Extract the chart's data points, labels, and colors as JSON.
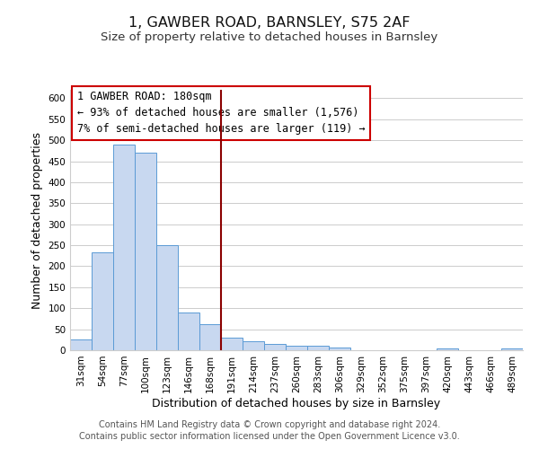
{
  "title": "1, GAWBER ROAD, BARNSLEY, S75 2AF",
  "subtitle": "Size of property relative to detached houses in Barnsley",
  "xlabel": "Distribution of detached houses by size in Barnsley",
  "ylabel": "Number of detached properties",
  "bar_color": "#c8d8f0",
  "bar_edge_color": "#5b9bd5",
  "categories": [
    "31sqm",
    "54sqm",
    "77sqm",
    "100sqm",
    "123sqm",
    "146sqm",
    "168sqm",
    "191sqm",
    "214sqm",
    "237sqm",
    "260sqm",
    "283sqm",
    "306sqm",
    "329sqm",
    "352sqm",
    "375sqm",
    "397sqm",
    "420sqm",
    "443sqm",
    "466sqm",
    "489sqm"
  ],
  "values": [
    25,
    232,
    490,
    470,
    250,
    90,
    62,
    30,
    22,
    14,
    10,
    10,
    7,
    0,
    0,
    0,
    0,
    5,
    0,
    0,
    4
  ],
  "ylim": [
    0,
    620
  ],
  "yticks": [
    0,
    50,
    100,
    150,
    200,
    250,
    300,
    350,
    400,
    450,
    500,
    550,
    600
  ],
  "vline_x": 6.5,
  "vline_color": "#8b0000",
  "annotation_title": "1 GAWBER ROAD: 180sqm",
  "annotation_line1": "← 93% of detached houses are smaller (1,576)",
  "annotation_line2": "7% of semi-detached houses are larger (119) →",
  "annotation_box_color": "#ffffff",
  "annotation_box_edge": "#cc0000",
  "footer1": "Contains HM Land Registry data © Crown copyright and database right 2024.",
  "footer2": "Contains public sector information licensed under the Open Government Licence v3.0.",
  "background_color": "#ffffff",
  "grid_color": "#cccccc",
  "title_fontsize": 11.5,
  "subtitle_fontsize": 9.5,
  "label_fontsize": 9,
  "tick_fontsize": 7.5,
  "annotation_fontsize": 8.5,
  "footer_fontsize": 7
}
